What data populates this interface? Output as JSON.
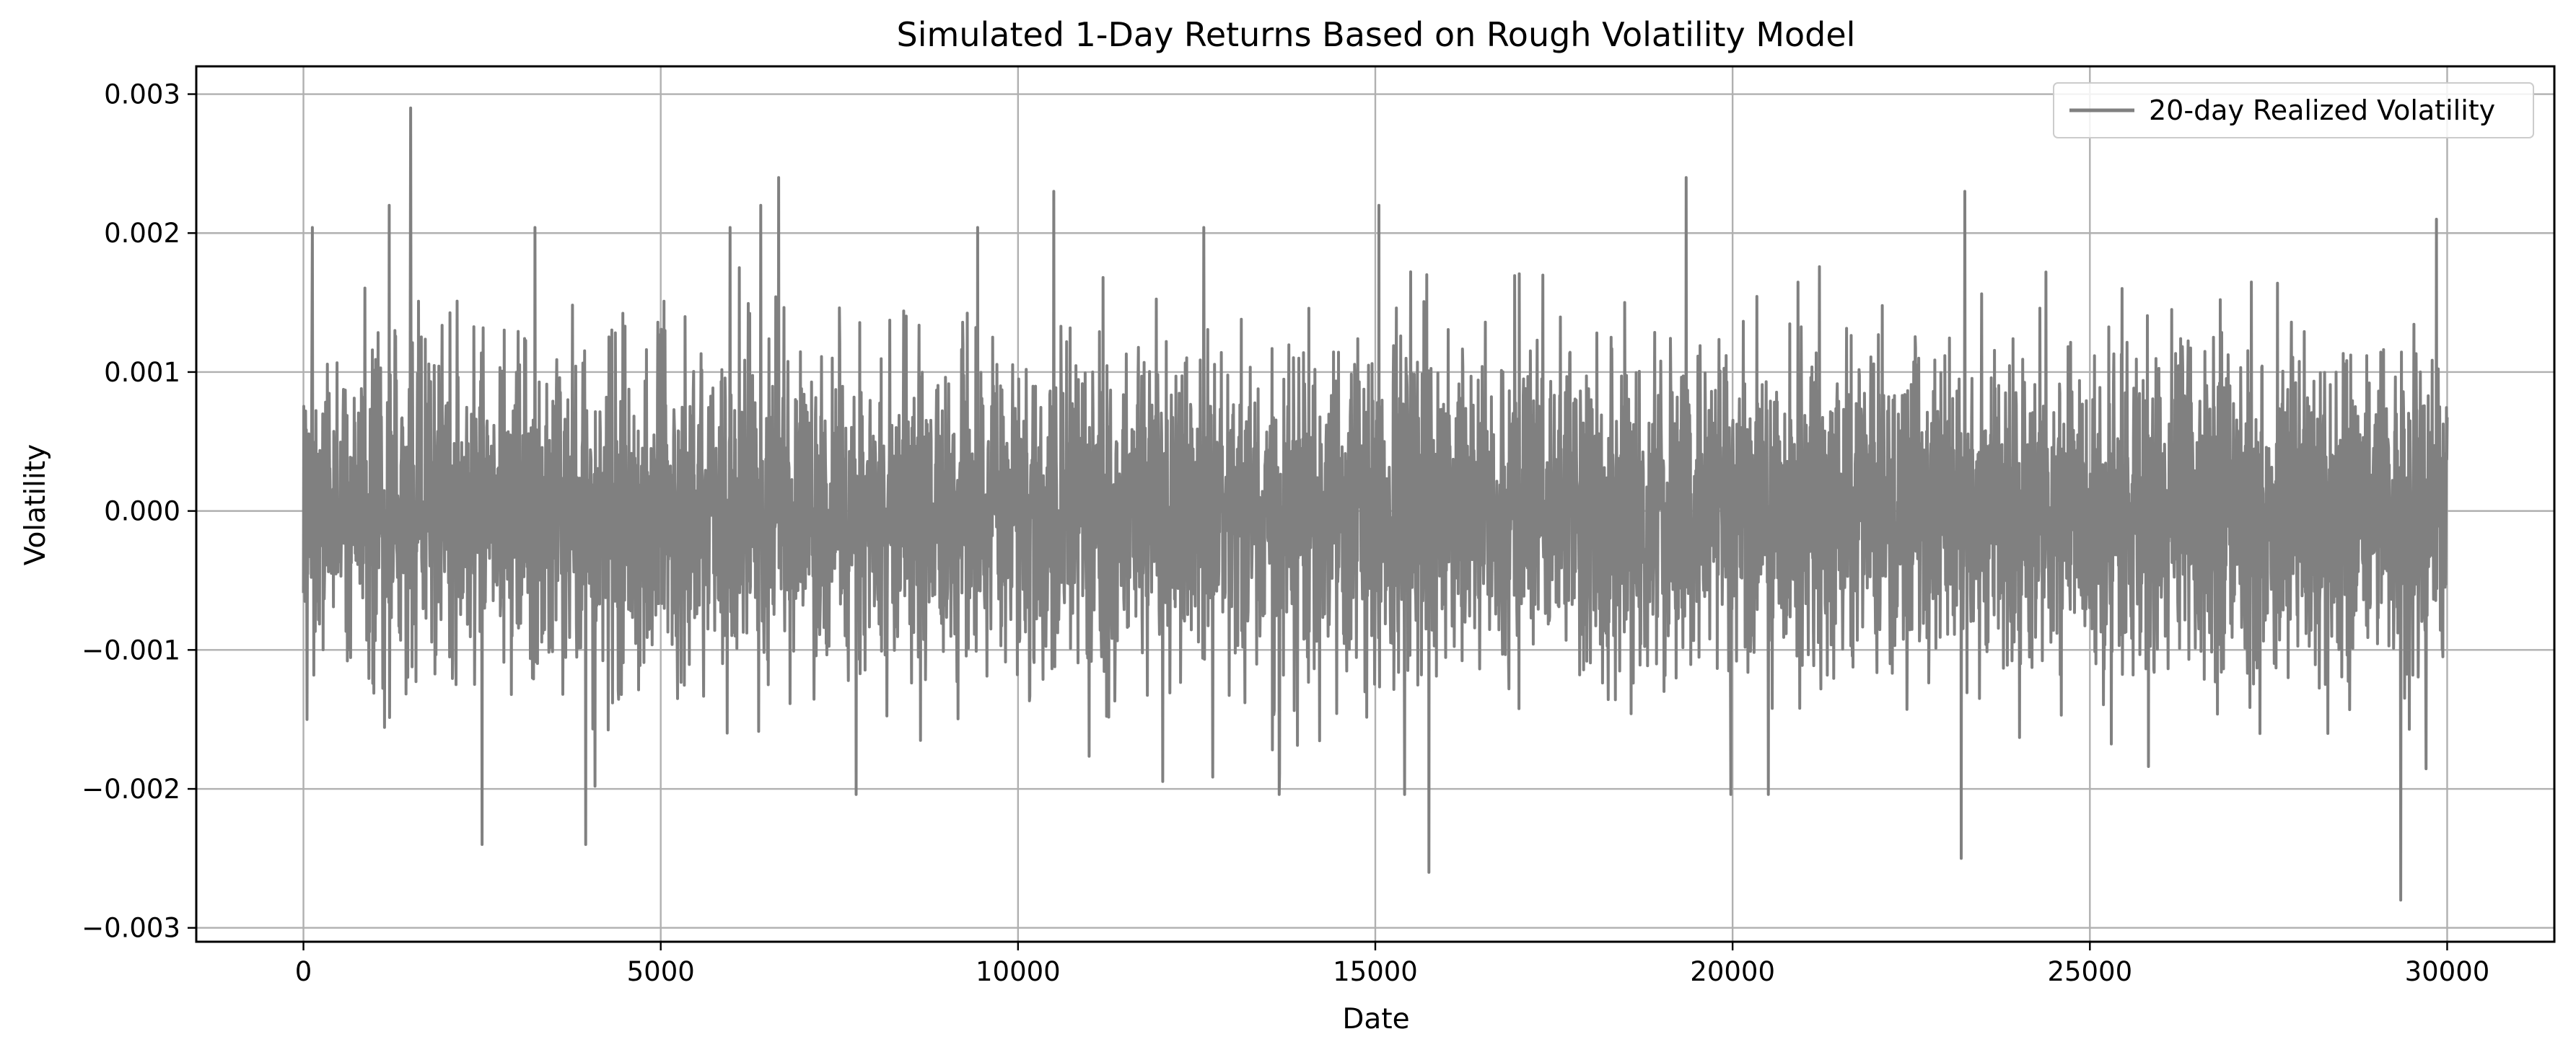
{
  "chart_data": {
    "type": "line",
    "title": "Simulated 1-Day Returns Based on Rough Volatility Model",
    "xlabel": "Date",
    "ylabel": "Volatility",
    "xlim": [
      -1500,
      31500
    ],
    "ylim": [
      -0.0031,
      0.0032
    ],
    "xticks": [
      0,
      5000,
      10000,
      15000,
      20000,
      25000,
      30000
    ],
    "xtick_labels": [
      "0",
      "5000",
      "10000",
      "15000",
      "20000",
      "25000",
      "30000"
    ],
    "yticks": [
      0.003,
      0.002,
      0.001,
      0.0,
      -0.001,
      -0.002,
      -0.003
    ],
    "ytick_labels": [
      "0.003",
      "0.002",
      "0.001",
      "0.000",
      "−0.001",
      "−0.002",
      "−0.003"
    ],
    "grid": true,
    "legend_position": "top-right",
    "series": [
      {
        "name": "20-day Realized Volatility",
        "color": "#808080",
        "x_range": [
          0,
          30000
        ],
        "typical_band": [
          -0.0012,
          0.0012
        ],
        "notable_points": [
          {
            "x": 50,
            "y": -0.0015
          },
          {
            "x": 1500,
            "y": 0.0029
          },
          {
            "x": 1200,
            "y": 0.0022
          },
          {
            "x": 2500,
            "y": -0.0024
          },
          {
            "x": 3950,
            "y": -0.0024
          },
          {
            "x": 6400,
            "y": 0.0022
          },
          {
            "x": 6650,
            "y": 0.0024
          },
          {
            "x": 10500,
            "y": 0.0023
          },
          {
            "x": 15050,
            "y": 0.0022
          },
          {
            "x": 15750,
            "y": -0.0026
          },
          {
            "x": 19350,
            "y": 0.0024
          },
          {
            "x": 23200,
            "y": -0.0025
          },
          {
            "x": 23250,
            "y": 0.0023
          },
          {
            "x": 29350,
            "y": -0.0028
          },
          {
            "x": 29850,
            "y": 0.0021
          }
        ]
      }
    ]
  }
}
